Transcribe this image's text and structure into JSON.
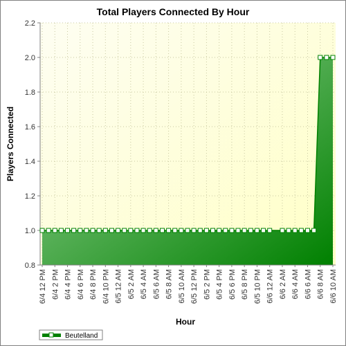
{
  "chart_data": {
    "type": "area",
    "title": "Total Players Connected By Hour",
    "xlabel": "Hour",
    "ylabel": "Players Connected",
    "ylim": [
      0.8,
      2.2
    ],
    "y_ticks": [
      "0.8",
      "1.0",
      "1.2",
      "1.4",
      "1.6",
      "1.8",
      "2.0",
      "2.2"
    ],
    "x_tick_labels": [
      "6/4 12 PM",
      "6/4 2 PM",
      "6/4 4 PM",
      "6/4 6 PM",
      "6/4 8 PM",
      "6/4 10 PM",
      "6/5 12 AM",
      "6/5 2 AM",
      "6/5 4 AM",
      "6/5 6 AM",
      "6/5 8 AM",
      "6/5 10 AM",
      "6/5 12 PM",
      "6/5 2 PM",
      "6/5 4 PM",
      "6/5 6 PM",
      "6/5 8 PM",
      "6/5 10 PM",
      "6/6 12 AM",
      "6/6 2 AM",
      "6/6 4 AM",
      "6/6 6 AM",
      "6/6 8 AM",
      "6/6 10 AM"
    ],
    "grid": true,
    "legend_position": "bottom-left",
    "series": [
      {
        "name": "Beutelland",
        "color": "#008000",
        "values": [
          1,
          1,
          1,
          1,
          1,
          1,
          1,
          1,
          1,
          1,
          1,
          1,
          1,
          1,
          1,
          1,
          1,
          1,
          1,
          1,
          1,
          1,
          1,
          1,
          1,
          1,
          1,
          1,
          1,
          1,
          1,
          1,
          1,
          1,
          1,
          1,
          1,
          null,
          1,
          1,
          1,
          1,
          1,
          1,
          2,
          2,
          2
        ]
      }
    ]
  }
}
